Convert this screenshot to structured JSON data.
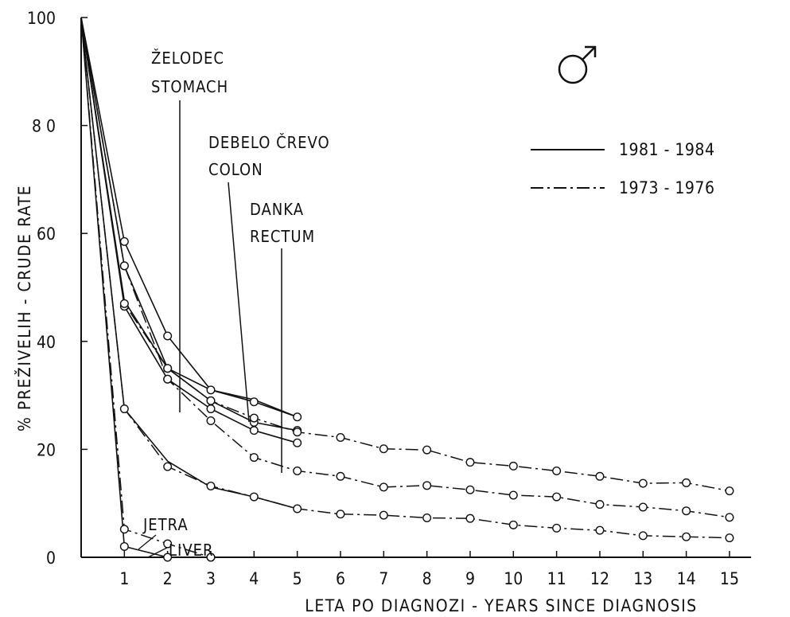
{
  "chart_data": {
    "type": "line",
    "xlabel": "LETA PO DIAGNOZI - YEARS SINCE DIAGNOSIS",
    "ylabel": "% PREŽIVELIH - CRUDE RATE",
    "xlim": [
      0,
      15.5
    ],
    "ylim": [
      0,
      100
    ],
    "x_ticks": [
      1,
      2,
      3,
      4,
      5,
      6,
      7,
      8,
      9,
      10,
      11,
      12,
      13,
      14,
      15
    ],
    "y_ticks": [
      0,
      20,
      40,
      60,
      80,
      100
    ],
    "y_tick_labels": [
      "0",
      "20",
      "40",
      "60",
      "8 0",
      "100"
    ],
    "symbol": "♂",
    "legend": [
      {
        "label": "1981 - 1984",
        "style": "solid"
      },
      {
        "label": "1973 - 1976",
        "style": "dash-dot"
      }
    ],
    "annotations": [
      {
        "lines": [
          "ŽELODEC",
          "STOMACH"
        ]
      },
      {
        "lines": [
          "DEBELO ČREVO",
          "COLON"
        ]
      },
      {
        "lines": [
          "DANKA",
          "RECTUM"
        ]
      },
      {
        "lines": [
          "JETRA",
          "LIVER"
        ]
      }
    ],
    "series": [
      {
        "style": "solid",
        "markers": true,
        "x": [
          0,
          1,
          2,
          3,
          4,
          5
        ],
        "y": [
          100,
          58.5,
          41,
          31,
          28.8,
          26
        ]
      },
      {
        "style": "solid",
        "markers": true,
        "x": [
          0,
          1,
          2,
          3,
          4,
          5
        ],
        "y": [
          100,
          54,
          35,
          29,
          25,
          23.5
        ]
      },
      {
        "style": "solid",
        "markers": true,
        "x": [
          0,
          1,
          2,
          3,
          4,
          5
        ],
        "y": [
          100,
          46.5,
          33,
          27.5,
          23.5,
          21.2
        ]
      },
      {
        "style": "solid",
        "markers": true,
        "x": [
          0,
          1,
          2,
          3
        ],
        "y": [
          100,
          2,
          0,
          0
        ]
      },
      {
        "style": "dash-dot",
        "markers": true,
        "x": [
          0,
          1,
          2,
          3,
          4,
          5,
          6,
          7,
          8,
          9,
          10,
          11,
          12,
          13,
          14,
          15
        ],
        "y": [
          100,
          54,
          33,
          25.3,
          18.5,
          16,
          15,
          13,
          13.3,
          12.5,
          11.5,
          11.2,
          9.8,
          9.3,
          8.6,
          7.4
        ]
      },
      {
        "style": "dash-dot",
        "markers": true,
        "x": [
          0,
          1,
          2,
          3,
          4,
          5,
          6,
          7,
          8,
          9,
          10,
          11,
          12,
          13,
          14,
          15
        ],
        "y": [
          100,
          27.5,
          16.8,
          13.2,
          11.2,
          9,
          8,
          7.8,
          7.3,
          7.2,
          6,
          5.4,
          5,
          4,
          3.8,
          3.6
        ]
      },
      {
        "style": "dash-dot",
        "markers": true,
        "x": [
          0,
          1,
          2,
          3,
          4,
          5,
          6,
          7,
          8,
          9,
          10,
          11,
          12,
          13,
          14,
          15
        ],
        "y": [
          100,
          47,
          35,
          29,
          25.8,
          23.2,
          22.2,
          20.1,
          19.9,
          17.6,
          16.9,
          16,
          15,
          13.7,
          13.8,
          12.3
        ]
      },
      {
        "style": "dash-dot",
        "markers": true,
        "x": [
          0,
          1,
          2,
          3
        ],
        "y": [
          100,
          5.2,
          2.5,
          0
        ]
      },
      {
        "style": "solid",
        "markers": false,
        "x": [
          0,
          1,
          2,
          3,
          4,
          5
        ],
        "y": [
          100,
          47.5,
          35,
          31,
          29.2,
          26
        ]
      },
      {
        "style": "solid",
        "markers": false,
        "x": [
          0,
          1,
          2,
          3,
          4,
          5
        ],
        "y": [
          100,
          27.5,
          17.8,
          13,
          11.2,
          9
        ]
      }
    ]
  }
}
